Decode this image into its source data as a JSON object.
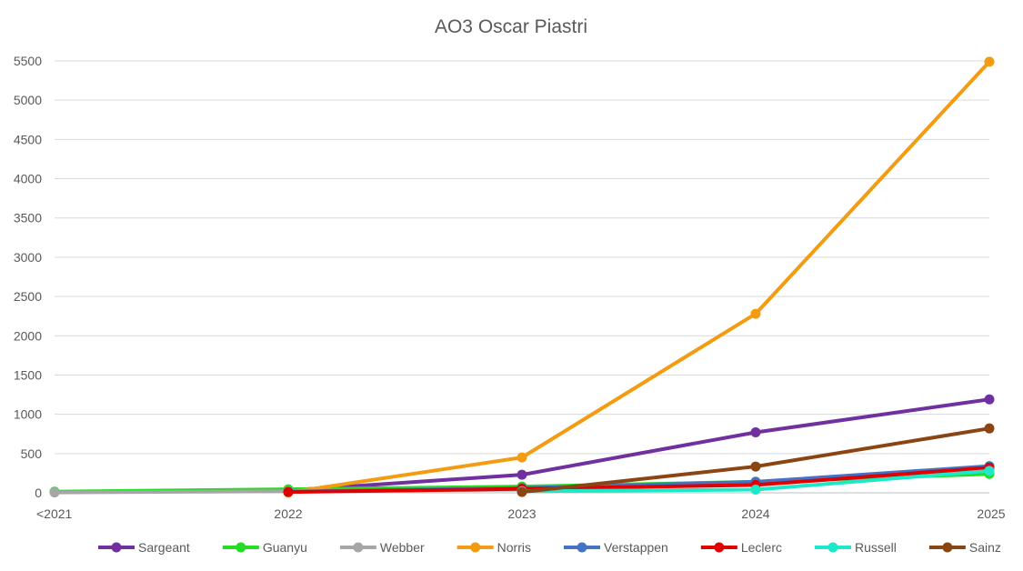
{
  "chart_data": {
    "type": "line",
    "title": "AO3 Oscar Piastri",
    "categories": [
      "<2021",
      "2022",
      "2023",
      "2024",
      "2025"
    ],
    "ylim": [
      0,
      5500
    ],
    "yticks": [
      0,
      500,
      1000,
      1500,
      2000,
      2500,
      3000,
      3500,
      4000,
      4500,
      5000,
      5500
    ],
    "grid": true,
    "legend_position": "bottom",
    "series": [
      {
        "name": "Sargeant",
        "color": "#7030A0",
        "values": [
          10,
          30,
          230,
          770,
          1190
        ]
      },
      {
        "name": "Guanyu",
        "color": "#22DD22",
        "values": [
          15,
          45,
          80,
          140,
          240
        ]
      },
      {
        "name": "Webber",
        "color": "#A6A6A6",
        "values": [
          5,
          20,
          40,
          120,
          300
        ]
      },
      {
        "name": "Norris",
        "color": "#F39C12",
        "values": [
          null,
          5,
          450,
          2280,
          5490
        ]
      },
      {
        "name": "Verstappen",
        "color": "#4472C4",
        "values": [
          null,
          15,
          60,
          140,
          340
        ]
      },
      {
        "name": "Leclerc",
        "color": "#E00000",
        "values": [
          null,
          10,
          50,
          100,
          320
        ]
      },
      {
        "name": "Russell",
        "color": "#1DE9C8",
        "values": [
          null,
          null,
          20,
          40,
          280
        ]
      },
      {
        "name": "Sainz",
        "color": "#8B4513",
        "values": [
          null,
          null,
          10,
          335,
          820
        ]
      }
    ]
  }
}
